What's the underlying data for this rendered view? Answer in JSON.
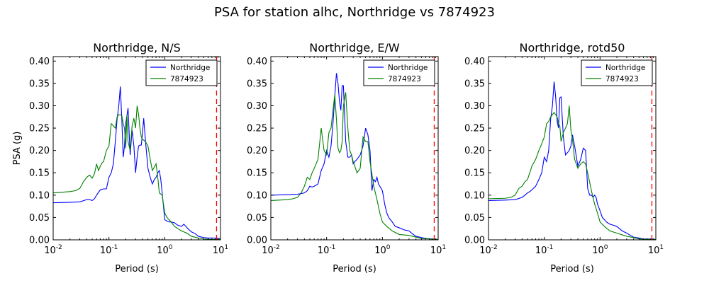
{
  "figure": {
    "suptitle": "PSA for station alhc, Northridge vs 7874923"
  },
  "colors": {
    "series_a": "#0000ff",
    "series_b": "#008000",
    "marker": "#ff0000",
    "axes": "#000000",
    "background": "#ffffff"
  },
  "chart_data": [
    {
      "type": "line",
      "title": "Northridge, N/S",
      "xlabel": "Period (s)",
      "ylabel": "PSA (g)",
      "xscale": "log",
      "xlim": [
        0.01,
        10
      ],
      "ylim": [
        0.0,
        0.41
      ],
      "xticks": [
        "10^-2",
        "10^-1",
        "10^0",
        "10^1"
      ],
      "yticks": [
        "0.00",
        "0.05",
        "0.10",
        "0.15",
        "0.20",
        "0.25",
        "0.30",
        "0.35",
        "0.40"
      ],
      "legend_position": "top-right",
      "vline_x": 8.5,
      "series": [
        {
          "name": "Northridge",
          "color": "#0000ff",
          "x": [
            0.01,
            0.02,
            0.03,
            0.04,
            0.045,
            0.05,
            0.055,
            0.06,
            0.07,
            0.08,
            0.09,
            0.1,
            0.11,
            0.12,
            0.13,
            0.14,
            0.15,
            0.16,
            0.17,
            0.18,
            0.19,
            0.2,
            0.22,
            0.24,
            0.26,
            0.28,
            0.3,
            0.32,
            0.34,
            0.36,
            0.38,
            0.4,
            0.42,
            0.44,
            0.46,
            0.48,
            0.5,
            0.55,
            0.6,
            0.65,
            0.7,
            0.75,
            0.8,
            0.85,
            0.9,
            0.95,
            1.0,
            1.1,
            1.2,
            1.3,
            1.5,
            1.7,
            2.0,
            2.2,
            2.4,
            2.6,
            3.0,
            3.5,
            4.0,
            5.0,
            6.0,
            7.5,
            10.0
          ],
          "y": [
            0.083,
            0.084,
            0.085,
            0.09,
            0.09,
            0.088,
            0.092,
            0.1,
            0.112,
            0.114,
            0.114,
            0.14,
            0.15,
            0.17,
            0.22,
            0.27,
            0.3,
            0.343,
            0.27,
            0.185,
            0.21,
            0.26,
            0.295,
            0.19,
            0.245,
            0.21,
            0.15,
            0.185,
            0.21,
            0.212,
            0.212,
            0.24,
            0.272,
            0.24,
            0.21,
            0.185,
            0.16,
            0.14,
            0.125,
            0.135,
            0.14,
            0.15,
            0.155,
            0.135,
            0.105,
            0.075,
            0.045,
            0.042,
            0.04,
            0.04,
            0.038,
            0.033,
            0.03,
            0.035,
            0.03,
            0.025,
            0.018,
            0.014,
            0.008,
            0.005,
            0.004,
            0.004,
            0.003
          ]
        },
        {
          "name": "7874923",
          "color": "#008000",
          "x": [
            0.01,
            0.02,
            0.025,
            0.03,
            0.035,
            0.04,
            0.045,
            0.05,
            0.055,
            0.06,
            0.065,
            0.07,
            0.075,
            0.08,
            0.09,
            0.1,
            0.11,
            0.12,
            0.13,
            0.14,
            0.15,
            0.16,
            0.17,
            0.18,
            0.19,
            0.2,
            0.21,
            0.22,
            0.24,
            0.26,
            0.28,
            0.3,
            0.32,
            0.34,
            0.36,
            0.38,
            0.4,
            0.45,
            0.5,
            0.55,
            0.6,
            0.7,
            0.75,
            0.8,
            0.9,
            1.0,
            1.1,
            1.3,
            1.5,
            2.0,
            2.5,
            3.0,
            4.0,
            5.0,
            7.0,
            10.0
          ],
          "y": [
            0.105,
            0.108,
            0.11,
            0.115,
            0.13,
            0.14,
            0.145,
            0.138,
            0.148,
            0.17,
            0.155,
            0.165,
            0.172,
            0.175,
            0.2,
            0.21,
            0.26,
            0.255,
            0.25,
            0.275,
            0.28,
            0.28,
            0.278,
            0.26,
            0.25,
            0.205,
            0.28,
            0.22,
            0.2,
            0.255,
            0.272,
            0.25,
            0.3,
            0.28,
            0.25,
            0.23,
            0.225,
            0.22,
            0.21,
            0.18,
            0.155,
            0.17,
            0.14,
            0.105,
            0.1,
            0.06,
            0.05,
            0.04,
            0.03,
            0.02,
            0.015,
            0.008,
            0.004,
            0.002,
            0.001,
            0.001
          ]
        }
      ]
    },
    {
      "type": "line",
      "title": "Northridge, E/W",
      "xlabel": "Period (s)",
      "ylabel": "",
      "xscale": "log",
      "xlim": [
        0.01,
        10
      ],
      "ylim": [
        0.0,
        0.41
      ],
      "xticks": [
        "10^-2",
        "10^-1",
        "10^0",
        "10^1"
      ],
      "yticks": [
        "0.00",
        "0.05",
        "0.10",
        "0.15",
        "0.20",
        "0.25",
        "0.30",
        "0.35",
        "0.40"
      ],
      "legend_position": "top-right",
      "vline_x": 8.5,
      "series": [
        {
          "name": "Northridge",
          "color": "#0000ff",
          "x": [
            0.01,
            0.02,
            0.03,
            0.04,
            0.045,
            0.05,
            0.055,
            0.06,
            0.07,
            0.08,
            0.09,
            0.1,
            0.11,
            0.12,
            0.13,
            0.14,
            0.15,
            0.16,
            0.17,
            0.18,
            0.19,
            0.2,
            0.22,
            0.24,
            0.26,
            0.28,
            0.3,
            0.32,
            0.35,
            0.4,
            0.45,
            0.5,
            0.55,
            0.6,
            0.65,
            0.7,
            0.75,
            0.8,
            0.85,
            0.9,
            1.0,
            1.1,
            1.2,
            1.3,
            1.5,
            1.7,
            2.0,
            2.5,
            3.0,
            3.5,
            4.0,
            5.0,
            6.0,
            8.0,
            10.0
          ],
          "y": [
            0.1,
            0.101,
            0.102,
            0.105,
            0.11,
            0.12,
            0.118,
            0.12,
            0.125,
            0.155,
            0.17,
            0.2,
            0.185,
            0.21,
            0.26,
            0.32,
            0.373,
            0.35,
            0.31,
            0.29,
            0.345,
            0.345,
            0.22,
            0.185,
            0.185,
            0.19,
            0.17,
            0.175,
            0.18,
            0.19,
            0.21,
            0.25,
            0.235,
            0.2,
            0.11,
            0.135,
            0.13,
            0.14,
            0.125,
            0.12,
            0.11,
            0.08,
            0.06,
            0.05,
            0.04,
            0.03,
            0.027,
            0.022,
            0.02,
            0.013,
            0.008,
            0.005,
            0.003,
            0.002,
            0.001
          ]
        },
        {
          "name": "7874923",
          "color": "#008000",
          "x": [
            0.01,
            0.02,
            0.025,
            0.03,
            0.035,
            0.04,
            0.045,
            0.05,
            0.055,
            0.06,
            0.07,
            0.08,
            0.09,
            0.1,
            0.11,
            0.12,
            0.13,
            0.14,
            0.15,
            0.16,
            0.17,
            0.18,
            0.19,
            0.2,
            0.22,
            0.24,
            0.26,
            0.28,
            0.3,
            0.32,
            0.35,
            0.4,
            0.45,
            0.5,
            0.55,
            0.6,
            0.7,
            0.8,
            0.9,
            1.0,
            1.2,
            1.5,
            2.0,
            3.0,
            4.0,
            5.0,
            7.0,
            10.0
          ],
          "y": [
            0.088,
            0.09,
            0.092,
            0.095,
            0.105,
            0.12,
            0.14,
            0.135,
            0.15,
            0.16,
            0.18,
            0.25,
            0.2,
            0.19,
            0.24,
            0.25,
            0.29,
            0.325,
            0.27,
            0.205,
            0.195,
            0.2,
            0.22,
            0.3,
            0.33,
            0.25,
            0.2,
            0.19,
            0.175,
            0.165,
            0.15,
            0.16,
            0.23,
            0.22,
            0.22,
            0.175,
            0.12,
            0.09,
            0.06,
            0.04,
            0.03,
            0.02,
            0.012,
            0.01,
            0.006,
            0.003,
            0.002,
            0.001
          ]
        }
      ]
    },
    {
      "type": "line",
      "title": "Northridge, rotd50",
      "xlabel": "Period (s)",
      "ylabel": "",
      "xscale": "log",
      "xlim": [
        0.01,
        10
      ],
      "ylim": [
        0.0,
        0.41
      ],
      "xticks": [
        "10^-2",
        "10^-1",
        "10^0",
        "10^1"
      ],
      "yticks": [
        "0.00",
        "0.05",
        "0.10",
        "0.15",
        "0.20",
        "0.25",
        "0.30",
        "0.35",
        "0.40"
      ],
      "legend_position": "top-right",
      "vline_x": 8.5,
      "series": [
        {
          "name": "Northridge",
          "color": "#0000ff",
          "x": [
            0.01,
            0.02,
            0.03,
            0.04,
            0.045,
            0.05,
            0.055,
            0.06,
            0.07,
            0.08,
            0.09,
            0.1,
            0.11,
            0.12,
            0.13,
            0.14,
            0.15,
            0.16,
            0.17,
            0.18,
            0.19,
            0.2,
            0.22,
            0.24,
            0.26,
            0.28,
            0.3,
            0.32,
            0.35,
            0.4,
            0.45,
            0.5,
            0.55,
            0.6,
            0.65,
            0.7,
            0.75,
            0.8,
            0.85,
            0.9,
            1.0,
            1.1,
            1.2,
            1.3,
            1.5,
            1.7,
            2.0,
            2.5,
            3.0,
            3.5,
            4.0,
            5.0,
            6.0,
            8.0,
            10.0
          ],
          "y": [
            0.088,
            0.089,
            0.09,
            0.095,
            0.1,
            0.105,
            0.108,
            0.112,
            0.12,
            0.135,
            0.15,
            0.185,
            0.175,
            0.2,
            0.27,
            0.3,
            0.354,
            0.32,
            0.265,
            0.25,
            0.318,
            0.32,
            0.23,
            0.19,
            0.195,
            0.2,
            0.21,
            0.235,
            0.21,
            0.165,
            0.18,
            0.205,
            0.2,
            0.115,
            0.1,
            0.1,
            0.095,
            0.1,
            0.095,
            0.08,
            0.065,
            0.05,
            0.045,
            0.04,
            0.035,
            0.033,
            0.03,
            0.02,
            0.015,
            0.01,
            0.006,
            0.004,
            0.002,
            0.002,
            0.001
          ]
        },
        {
          "name": "7874923",
          "color": "#008000",
          "x": [
            0.01,
            0.02,
            0.025,
            0.03,
            0.035,
            0.04,
            0.045,
            0.05,
            0.055,
            0.06,
            0.07,
            0.08,
            0.09,
            0.1,
            0.11,
            0.12,
            0.13,
            0.14,
            0.15,
            0.16,
            0.17,
            0.18,
            0.19,
            0.2,
            0.22,
            0.24,
            0.26,
            0.28,
            0.3,
            0.32,
            0.35,
            0.4,
            0.45,
            0.5,
            0.55,
            0.6,
            0.7,
            0.8,
            0.9,
            1.0,
            1.2,
            1.5,
            2.0,
            3.0,
            4.0,
            5.0,
            7.0,
            10.0
          ],
          "y": [
            0.092,
            0.093,
            0.095,
            0.1,
            0.115,
            0.12,
            0.13,
            0.135,
            0.15,
            0.165,
            0.18,
            0.2,
            0.215,
            0.23,
            0.26,
            0.265,
            0.275,
            0.28,
            0.285,
            0.28,
            0.275,
            0.26,
            0.255,
            0.22,
            0.24,
            0.25,
            0.26,
            0.3,
            0.245,
            0.225,
            0.18,
            0.16,
            0.17,
            0.175,
            0.17,
            0.15,
            0.11,
            0.08,
            0.06,
            0.04,
            0.03,
            0.02,
            0.015,
            0.008,
            0.005,
            0.002,
            0.001,
            0.001
          ]
        }
      ]
    }
  ]
}
